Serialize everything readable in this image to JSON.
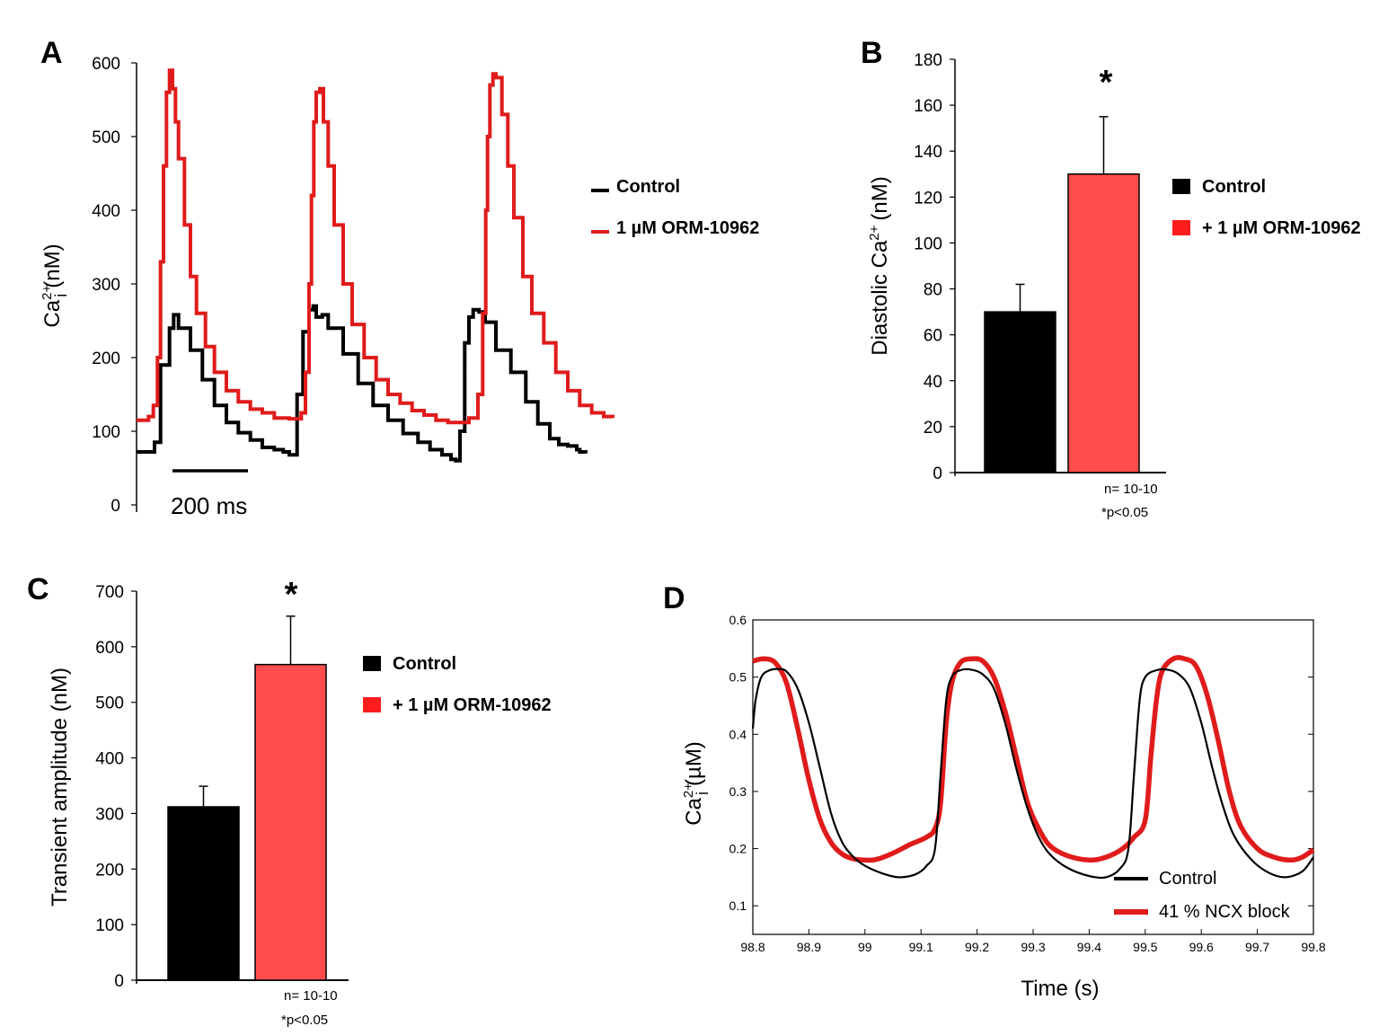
{
  "figure": {
    "panel_letters": [
      "A",
      "B",
      "C",
      "D"
    ]
  },
  "colors": {
    "black": "#000000",
    "red": "#e01b1b",
    "bar_red": "#ff4d4d"
  },
  "chart_data": [
    {
      "panel": "A",
      "type": "line",
      "ylabel": "Ca",
      "ylabel_sup": "2+",
      "ylabel_sub": "i",
      "ylabel_unit": "(nM)",
      "ylim": [
        0,
        600
      ],
      "yticks": [
        0,
        100,
        200,
        300,
        400,
        500,
        600
      ],
      "scale_bar": "200 ms",
      "legend": [
        "Control",
        "1 µM ORM-10962"
      ],
      "series": [
        {
          "name": "Control",
          "color": "#000000",
          "points": [
            [
              0,
              72
            ],
            [
              25,
              72
            ],
            [
              30,
              85
            ],
            [
              40,
              190
            ],
            [
              55,
              240
            ],
            [
              62,
              258
            ],
            [
              70,
              240
            ],
            [
              90,
              210
            ],
            [
              110,
              170
            ],
            [
              130,
              135
            ],
            [
              150,
              112
            ],
            [
              170,
              98
            ],
            [
              190,
              88
            ],
            [
              210,
              78
            ],
            [
              230,
              75
            ],
            [
              245,
              72
            ],
            [
              255,
              68
            ],
            [
              262,
              68
            ],
            [
              268,
              150
            ],
            [
              278,
              235
            ],
            [
              288,
              265
            ],
            [
              295,
              270
            ],
            [
              300,
              255
            ],
            [
              310,
              258
            ],
            [
              320,
              240
            ],
            [
              345,
              205
            ],
            [
              370,
              165
            ],
            [
              395,
              135
            ],
            [
              420,
              115
            ],
            [
              445,
              97
            ],
            [
              470,
              85
            ],
            [
              490,
              75
            ],
            [
              510,
              68
            ],
            [
              525,
              62
            ],
            [
              533,
              60
            ],
            [
              540,
              100
            ],
            [
              548,
              220
            ],
            [
              555,
              255
            ],
            [
              562,
              265
            ],
            [
              572,
              262
            ],
            [
              582,
              248
            ],
            [
              600,
              210
            ],
            [
              625,
              180
            ],
            [
              650,
              140
            ],
            [
              670,
              110
            ],
            [
              690,
              90
            ],
            [
              705,
              82
            ],
            [
              720,
              80
            ],
            [
              735,
              75
            ],
            [
              740,
              72
            ],
            [
              750,
              70
            ]
          ]
        },
        {
          "name": "1 µM ORM-10962",
          "color": "#e01b1b",
          "points": [
            [
              0,
              115
            ],
            [
              20,
              120
            ],
            [
              28,
              135
            ],
            [
              35,
              200
            ],
            [
              40,
              330
            ],
            [
              45,
              460
            ],
            [
              50,
              560
            ],
            [
              55,
              590
            ],
            [
              60,
              565
            ],
            [
              65,
              520
            ],
            [
              70,
              470
            ],
            [
              80,
              380
            ],
            [
              90,
              310
            ],
            [
              100,
              260
            ],
            [
              115,
              215
            ],
            [
              130,
              180
            ],
            [
              150,
              155
            ],
            [
              170,
              140
            ],
            [
              190,
              130
            ],
            [
              210,
              125
            ],
            [
              230,
              118
            ],
            [
              255,
              117
            ],
            [
              265,
              117
            ],
            [
              275,
              125
            ],
            [
              282,
              180
            ],
            [
              288,
              300
            ],
            [
              292,
              420
            ],
            [
              296,
              520
            ],
            [
              300,
              560
            ],
            [
              306,
              565
            ],
            [
              312,
              520
            ],
            [
              320,
              460
            ],
            [
              330,
              380
            ],
            [
              345,
              300
            ],
            [
              360,
              245
            ],
            [
              380,
              200
            ],
            [
              400,
              170
            ],
            [
              420,
              150
            ],
            [
              440,
              138
            ],
            [
              460,
              128
            ],
            [
              480,
              122
            ],
            [
              500,
              115
            ],
            [
              520,
              112
            ],
            [
              540,
              112
            ],
            [
              555,
              118
            ],
            [
              570,
              150
            ],
            [
              578,
              260
            ],
            [
              583,
              400
            ],
            [
              586,
              500
            ],
            [
              590,
              570
            ],
            [
              595,
              585
            ],
            [
              600,
              580
            ],
            [
              610,
              530
            ],
            [
              620,
              460
            ],
            [
              630,
              390
            ],
            [
              645,
              310
            ],
            [
              660,
              260
            ],
            [
              680,
              220
            ],
            [
              700,
              180
            ],
            [
              720,
              155
            ],
            [
              740,
              135
            ],
            [
              760,
              125
            ],
            [
              780,
              120
            ],
            [
              795,
              118
            ]
          ]
        }
      ]
    },
    {
      "panel": "B",
      "type": "bar",
      "ylabel": "Diastolic Ca",
      "ylabel_sup": "2+",
      "ylabel_unit": "(nM)",
      "ylim": [
        0,
        180
      ],
      "yticks": [
        0,
        20,
        40,
        60,
        80,
        100,
        120,
        140,
        160,
        180
      ],
      "categories": [
        "Control",
        "+ 1 µM ORM-10962"
      ],
      "values": [
        70,
        130
      ],
      "errors": [
        12,
        25
      ],
      "significance": "*",
      "n_label": "n= 10-10",
      "p_label": "*p<0.05",
      "legend": [
        "Control",
        "+ 1 µM ORM-10962"
      ]
    },
    {
      "panel": "C",
      "type": "bar",
      "ylabel": "Transient amplitude (nM)",
      "ylim": [
        0,
        700
      ],
      "yticks": [
        0,
        100,
        200,
        300,
        400,
        500,
        600,
        700
      ],
      "categories": [
        "Control",
        "+ 1 µM ORM-10962"
      ],
      "values": [
        312,
        568
      ],
      "errors": [
        37,
        87
      ],
      "significance": "*",
      "n_label": "n= 10-10",
      "p_label": "*p<0.05",
      "legend": [
        "Control",
        "+ 1 µM ORM-10962"
      ]
    },
    {
      "panel": "D",
      "type": "line",
      "xlabel": "Time (s)",
      "ylabel": "Ca",
      "ylabel_sup": "2+",
      "ylabel_sub": "i",
      "ylabel_unit": "(µM)",
      "xlim": [
        98.8,
        99.8
      ],
      "ylim": [
        0.05,
        0.6
      ],
      "xticks": [
        "98.8",
        "98.9",
        "99",
        "99.1",
        "99.2",
        "99.3",
        "99.4",
        "99.5",
        "99.6",
        "99.7",
        "99.8"
      ],
      "yticks": [
        "0.1",
        "0.2",
        "0.3",
        "0.4",
        "0.5",
        "0.6"
      ],
      "legend": [
        "Control",
        "41 % NCX block"
      ],
      "series": [
        {
          "name": "Control",
          "color": "#000000",
          "points": [
            [
              98.8,
              0.41
            ],
            [
              98.805,
              0.46
            ],
            [
              98.815,
              0.5
            ],
            [
              98.83,
              0.512
            ],
            [
              98.845,
              0.514
            ],
            [
              98.86,
              0.51
            ],
            [
              98.88,
              0.48
            ],
            [
              98.9,
              0.42
            ],
            [
              98.92,
              0.34
            ],
            [
              98.94,
              0.26
            ],
            [
              98.96,
              0.21
            ],
            [
              98.98,
              0.185
            ],
            [
              99.0,
              0.17
            ],
            [
              99.03,
              0.157
            ],
            [
              99.06,
              0.15
            ],
            [
              99.09,
              0.155
            ],
            [
              99.11,
              0.17
            ],
            [
              99.125,
              0.2
            ],
            [
              99.135,
              0.33
            ],
            [
              99.145,
              0.46
            ],
            [
              99.155,
              0.5
            ],
            [
              99.17,
              0.512
            ],
            [
              99.19,
              0.513
            ],
            [
              99.21,
              0.505
            ],
            [
              99.23,
              0.48
            ],
            [
              99.25,
              0.42
            ],
            [
              99.27,
              0.34
            ],
            [
              99.29,
              0.27
            ],
            [
              99.31,
              0.22
            ],
            [
              99.33,
              0.19
            ],
            [
              99.36,
              0.167
            ],
            [
              99.4,
              0.152
            ],
            [
              99.43,
              0.15
            ],
            [
              99.455,
              0.165
            ],
            [
              99.47,
              0.2
            ],
            [
              99.48,
              0.33
            ],
            [
              99.49,
              0.46
            ],
            [
              99.5,
              0.5
            ],
            [
              99.52,
              0.512
            ],
            [
              99.54,
              0.513
            ],
            [
              99.56,
              0.505
            ],
            [
              99.58,
              0.48
            ],
            [
              99.6,
              0.42
            ],
            [
              99.62,
              0.34
            ],
            [
              99.64,
              0.27
            ],
            [
              99.66,
              0.22
            ],
            [
              99.69,
              0.18
            ],
            [
              99.72,
              0.158
            ],
            [
              99.75,
              0.15
            ],
            [
              99.78,
              0.16
            ],
            [
              99.8,
              0.185
            ]
          ]
        },
        {
          "name": "41 % NCX block",
          "color": "#e01b1b",
          "points": [
            [
              98.8,
              0.528
            ],
            [
              98.82,
              0.532
            ],
            [
              98.84,
              0.525
            ],
            [
              98.86,
              0.49
            ],
            [
              98.88,
              0.41
            ],
            [
              98.9,
              0.32
            ],
            [
              98.92,
              0.25
            ],
            [
              98.94,
              0.21
            ],
            [
              98.96,
              0.19
            ],
            [
              98.98,
              0.182
            ],
            [
              99.0,
              0.18
            ],
            [
              99.02,
              0.181
            ],
            [
              99.05,
              0.192
            ],
            [
              99.08,
              0.207
            ],
            [
              99.11,
              0.22
            ],
            [
              99.125,
              0.235
            ],
            [
              99.135,
              0.28
            ],
            [
              99.145,
              0.42
            ],
            [
              99.155,
              0.49
            ],
            [
              99.17,
              0.525
            ],
            [
              99.19,
              0.532
            ],
            [
              99.21,
              0.528
            ],
            [
              99.23,
              0.5
            ],
            [
              99.25,
              0.44
            ],
            [
              99.27,
              0.36
            ],
            [
              99.29,
              0.28
            ],
            [
              99.31,
              0.235
            ],
            [
              99.33,
              0.205
            ],
            [
              99.36,
              0.188
            ],
            [
              99.4,
              0.18
            ],
            [
              99.43,
              0.185
            ],
            [
              99.46,
              0.2
            ],
            [
              99.48,
              0.22
            ],
            [
              99.5,
              0.25
            ],
            [
              99.51,
              0.36
            ],
            [
              99.52,
              0.46
            ],
            [
              99.53,
              0.51
            ],
            [
              99.55,
              0.532
            ],
            [
              99.57,
              0.532
            ],
            [
              99.59,
              0.52
            ],
            [
              99.61,
              0.47
            ],
            [
              99.63,
              0.39
            ],
            [
              99.65,
              0.3
            ],
            [
              99.67,
              0.24
            ],
            [
              99.7,
              0.2
            ],
            [
              99.73,
              0.185
            ],
            [
              99.76,
              0.18
            ],
            [
              99.78,
              0.185
            ],
            [
              99.8,
              0.198
            ]
          ]
        }
      ]
    }
  ]
}
